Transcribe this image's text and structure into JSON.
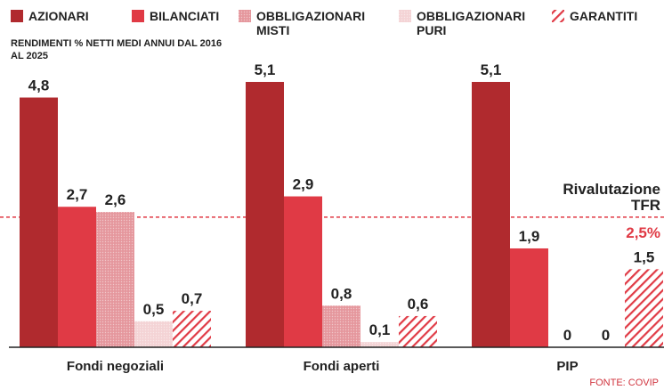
{
  "chart_data": {
    "type": "bar",
    "subtitle": "RENDIMENTI % NETTI MEDI ANNUI DAL 2016 AL 2025",
    "categories": [
      "Fondi negoziali",
      "Fondi aperti",
      "PIP"
    ],
    "series": [
      {
        "name": "AZIONARI",
        "color": "#b02a2e",
        "pattern": "solid",
        "values": [
          4.8,
          5.1,
          5.1
        ],
        "value_labels": [
          "4,8",
          "5,1",
          "5,1"
        ]
      },
      {
        "name": "BILANCIATI",
        "color": "#e03a45",
        "pattern": "solid",
        "values": [
          2.7,
          2.9,
          1.9
        ],
        "value_labels": [
          "2,7",
          "2,9",
          "1,9"
        ]
      },
      {
        "name": "OBBLIGAZIONARI MISTI",
        "color": "#e5979d",
        "pattern": "dots",
        "values": [
          2.6,
          0.8,
          0
        ],
        "value_labels": [
          "2,6",
          "0,8",
          "0"
        ]
      },
      {
        "name": "OBBLIGAZIONARI PURI",
        "color": "#f4d3d5",
        "pattern": "dots",
        "values": [
          0.5,
          0.1,
          0
        ],
        "value_labels": [
          "0,5",
          "0,1",
          "0"
        ]
      },
      {
        "name": "GARANTITI",
        "color": "#e03a45",
        "pattern": "hatch",
        "values": [
          0.7,
          0.6,
          1.5
        ],
        "value_labels": [
          "0,7",
          "0,6",
          "1,5"
        ]
      }
    ],
    "reference_line": {
      "label": "Rivalutazione TFR",
      "value": 2.5,
      "value_label": "2,5%",
      "color": "#e03a45"
    },
    "ylim": [
      0,
      5.1
    ],
    "source": "FONTE: COVIP"
  }
}
